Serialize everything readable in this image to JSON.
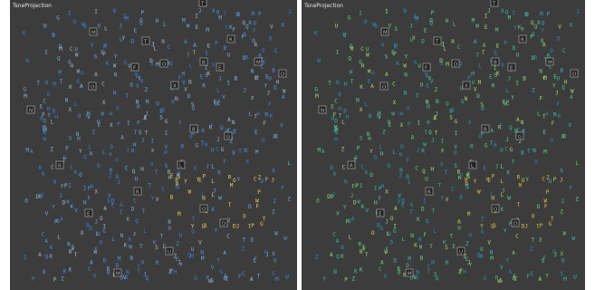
{
  "panels": [
    {
      "id": "left",
      "title": "TsneProjection",
      "colormap": [
        "#3a7bd5",
        "#4a90e2",
        "#6fa8dc",
        "#9fb6c8",
        "#e7c95a"
      ],
      "warm_region_color": "#e7c95a"
    },
    {
      "id": "right",
      "title": "TsneProjection",
      "colormap": [
        "#2a8fb0",
        "#38b8a8",
        "#5fcf86",
        "#a8d86a",
        "#e8c33c"
      ],
      "warm_region_color": "#d9c04a"
    }
  ],
  "glyph_alphabet": "ABCDEFGHIJKLMNOPQRSTUVWXYZ",
  "boxed_labels": [
    "M",
    "T",
    "R",
    "M",
    "F",
    "O",
    "B",
    "E",
    "D",
    "O",
    "X",
    "N",
    "B",
    "G",
    "R",
    "L",
    "R",
    "O",
    "E",
    "D",
    "U"
  ]
}
